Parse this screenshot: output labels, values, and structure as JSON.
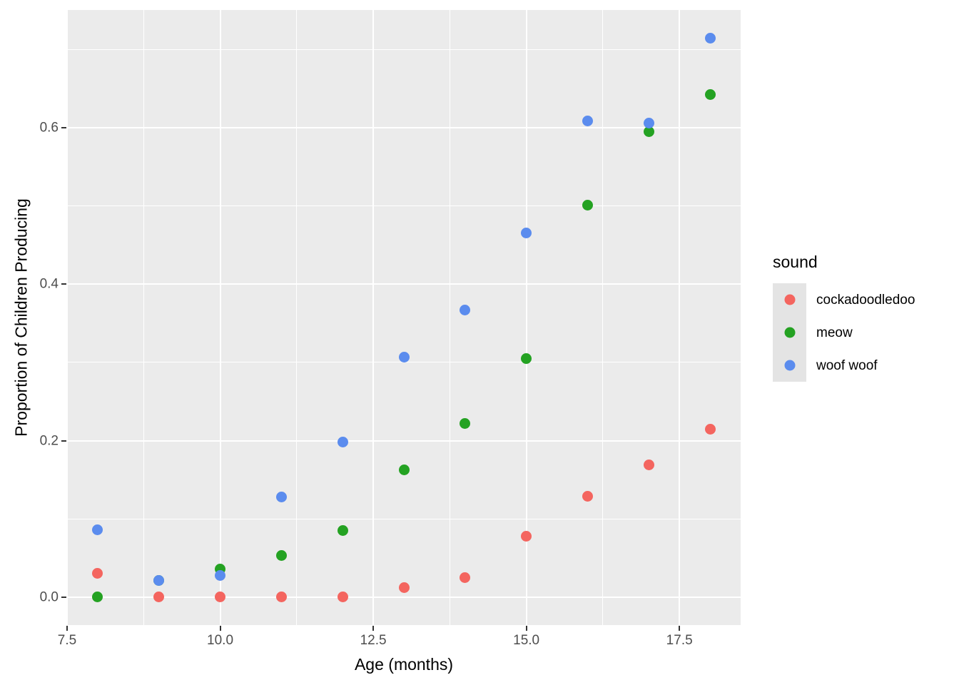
{
  "chart_data": {
    "type": "scatter",
    "x": [
      8,
      9,
      10,
      11,
      12,
      13,
      14,
      15,
      16,
      17,
      18
    ],
    "series": [
      {
        "name": "cockadoodledoo",
        "color": "#F4655F",
        "values": [
          0.03,
          0.0,
          0.0,
          0.0,
          0.0,
          0.012,
          0.025,
          0.078,
          0.129,
          0.169,
          0.215
        ]
      },
      {
        "name": "meow",
        "color": "#24A222",
        "values": [
          0.0,
          0.021,
          0.036,
          0.053,
          0.085,
          0.163,
          0.222,
          0.305,
          0.501,
          0.595,
          0.642
        ]
      },
      {
        "name": "woof woof",
        "color": "#5B8CEE",
        "values": [
          0.086,
          0.021,
          0.028,
          0.128,
          0.198,
          0.307,
          0.367,
          0.465,
          0.609,
          0.606,
          0.714
        ]
      }
    ],
    "title": "",
    "xlabel": "Age (months)",
    "ylabel": "Proportion of Children Producing",
    "xlim": [
      7.5,
      18.5
    ],
    "ylim": [
      -0.0357,
      0.7504
    ],
    "x_major_ticks": [
      7.5,
      10.0,
      12.5,
      15.0,
      17.5
    ],
    "x_tick_labels": [
      "7.5",
      "10.0",
      "12.5",
      "15.0",
      "17.5"
    ],
    "x_minor_ticks": [
      8.75,
      11.25,
      13.75,
      16.25
    ],
    "y_major_ticks": [
      0.0,
      0.2,
      0.4,
      0.6
    ],
    "y_tick_labels": [
      "0.0",
      "0.2",
      "0.4",
      "0.6"
    ],
    "y_minor_ticks": [
      0.1,
      0.3,
      0.5,
      0.7
    ],
    "grid": true,
    "legend_position": "right",
    "legend_title": "sound",
    "panel_background": "#EBEBEB",
    "gridline_color": "#FFFFFF"
  }
}
